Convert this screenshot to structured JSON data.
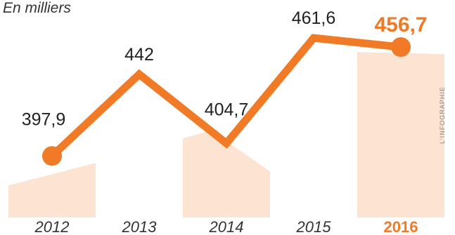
{
  "subtitle": "En milliers",
  "credit": "L'INFOGRAPHIE",
  "colors": {
    "line": "#f07a26",
    "band": "#fde3d1",
    "highlight": "#f07a26",
    "text": "#222222"
  },
  "chart_data": {
    "type": "line",
    "title": "",
    "xlabel": "",
    "ylabel": "",
    "categories": [
      "2012",
      "2013",
      "2014",
      "2015",
      "2016"
    ],
    "values": [
      397.9,
      442,
      404.7,
      461.6,
      456.7
    ],
    "value_labels": [
      "397,9",
      "442",
      "404,7",
      "461,6",
      "456,7"
    ],
    "highlight_category": "2016",
    "ylim": [
      370,
      470
    ],
    "grid": false
  }
}
